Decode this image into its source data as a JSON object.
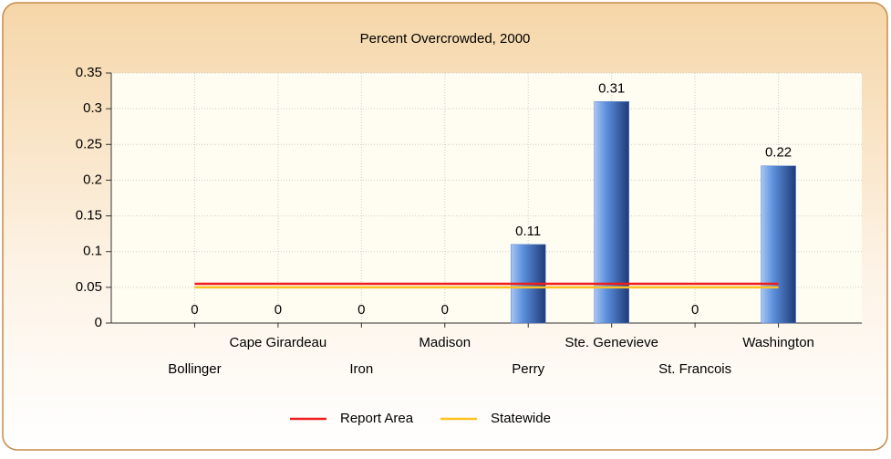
{
  "chart_data": {
    "type": "bar",
    "title": "Percent Overcrowded, 2000",
    "categories": [
      "Bollinger",
      "Cape Girardeau",
      "Iron",
      "Madison",
      "Perry",
      "Ste. Genevieve",
      "St. Francois",
      "Washington"
    ],
    "values": [
      0,
      0,
      0,
      0,
      0.11,
      0.31,
      0,
      0.22
    ],
    "color": "#4f7fcf",
    "series": [
      {
        "name": "Report Area",
        "color": "#ee1c1c",
        "values": [
          0.055,
          0.055,
          0.055,
          0.055,
          0.055,
          0.055,
          0.055,
          0.055
        ]
      },
      {
        "name": "Statewide",
        "color": "#ffc020",
        "values": [
          0.05,
          0.05,
          0.05,
          0.05,
          0.05,
          0.05,
          0.05,
          0.05
        ]
      }
    ],
    "ylim": [
      0,
      0.35
    ],
    "yticks": [
      0,
      0.05,
      0.1,
      0.15,
      0.2,
      0.25,
      0.3,
      0.35
    ],
    "grid": true,
    "legend": "bottom"
  }
}
